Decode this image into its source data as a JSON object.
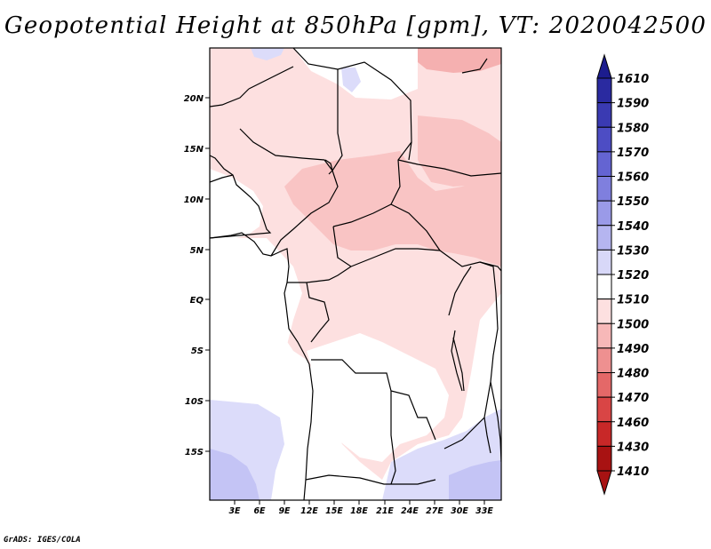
{
  "title": "Geopotential Height at 850hPa [gpm], VT: 2020042500",
  "credit": "GrADS: IGES/COLA",
  "map": {
    "variable": "Geopotential Height",
    "level": "850hPa",
    "units": "gpm",
    "valid_time": "2020042500",
    "lat_labels": [
      "20N",
      "15N",
      "10N",
      "5N",
      "EQ",
      "5S",
      "10S",
      "15S"
    ],
    "lon_labels": [
      "3E",
      "6E",
      "9E",
      "12E",
      "15E",
      "18E",
      "21E",
      "24E",
      "27E",
      "30E",
      "33E"
    ]
  },
  "colorbar": {
    "levels": [
      "1610",
      "1590",
      "1580",
      "1570",
      "1560",
      "1550",
      "1540",
      "1530",
      "1520",
      "1510",
      "1500",
      "1490",
      "1480",
      "1470",
      "1460",
      "1430",
      "1410"
    ],
    "colors": [
      "#1c1c8e",
      "#2a2aa0",
      "#3a3ab2",
      "#4d4dc4",
      "#6464d2",
      "#7f7fde",
      "#9a9ae8",
      "#b5b5f0",
      "#d8d8f8",
      "#ffffff",
      "#fde0e0",
      "#f7b8b8",
      "#ee9090",
      "#e46868",
      "#d94545",
      "#c82828",
      "#a81212"
    ]
  }
}
